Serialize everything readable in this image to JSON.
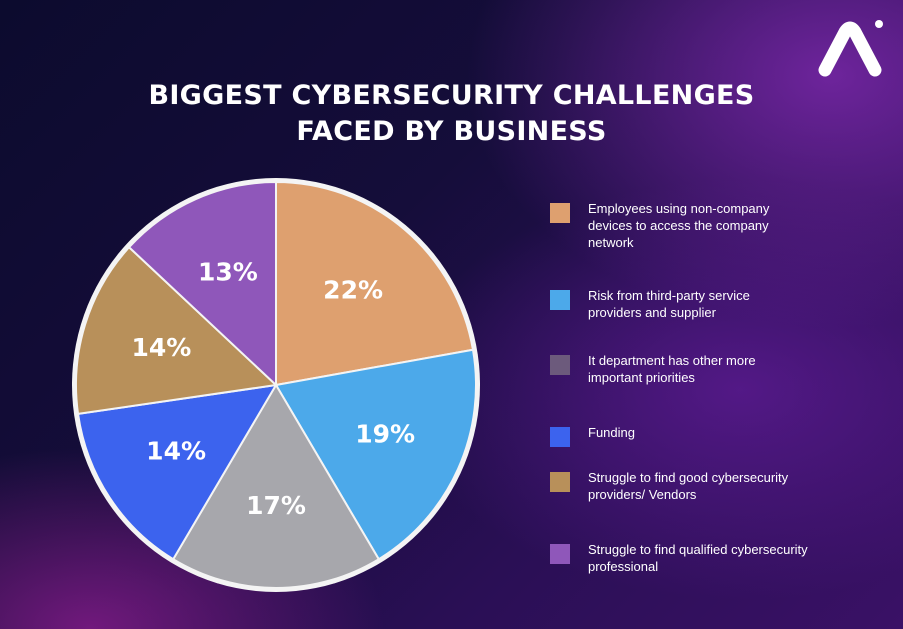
{
  "colors": {
    "employees": "#dea06f",
    "third_party": "#4ca9ea",
    "it_priorities": "#a7a7ac",
    "funding": "#3c63ee",
    "vendors": "#b8905a",
    "professional": "#8f57ba",
    "legend_it_priorities": "#6c5a7c"
  },
  "chart_data": {
    "type": "pie",
    "title": "BIGGEST CYBERSECURITY CHALLENGES FACED BY BUSINESS",
    "title_lines": [
      "BIGGEST CYBERSECURITY CHALLENGES",
      "FACED BY BUSINESS"
    ],
    "legend_position": "right",
    "slices": [
      {
        "label": "Employees using non-company devices to access the company network",
        "value": 22,
        "display": "22%",
        "color": "#dea06f"
      },
      {
        "label": "Risk from third-party service providers and supplier",
        "value": 19,
        "display": "19%",
        "color": "#4ca9ea"
      },
      {
        "label": "It department has other more important priorities",
        "value": 17,
        "display": "17%",
        "color": "#a7a7ac"
      },
      {
        "label": "Funding",
        "value": 14,
        "display": "14%",
        "color": "#3c63ee"
      },
      {
        "label": "Struggle to find good cybersecurity providers/ Vendors",
        "value": 14,
        "display": "14%",
        "color": "#b8905a"
      },
      {
        "label": "Struggle to find qualified cybersecurity professional",
        "value": 13,
        "display": "13%",
        "color": "#8f57ba"
      }
    ]
  },
  "legend": [
    {
      "text": "Employees using non-company\ndevices to access the company\nnetwork",
      "color": "#dea06f"
    },
    {
      "text": "Risk from third-party service\nproviders and supplier",
      "color": "#4ca9ea"
    },
    {
      "text": "It department has other more\nimportant priorities",
      "color": "#6c5a7c"
    },
    {
      "text": "Funding",
      "color": "#3c63ee"
    },
    {
      "text": "Struggle to find good cybersecurity\nproviders/ Vendors",
      "color": "#b8905a"
    },
    {
      "text": "Struggle to find qualified cybersecurity\nprofessional",
      "color": "#8f57ba"
    }
  ]
}
